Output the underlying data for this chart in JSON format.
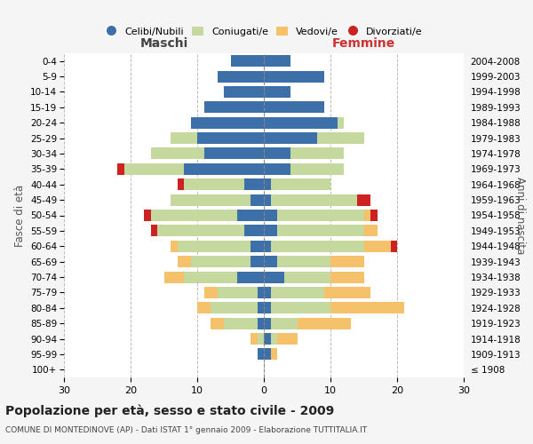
{
  "age_groups": [
    "100+",
    "95-99",
    "90-94",
    "85-89",
    "80-84",
    "75-79",
    "70-74",
    "65-69",
    "60-64",
    "55-59",
    "50-54",
    "45-49",
    "40-44",
    "35-39",
    "30-34",
    "25-29",
    "20-24",
    "15-19",
    "10-14",
    "5-9",
    "0-4"
  ],
  "birth_years": [
    "≤ 1908",
    "1909-1913",
    "1914-1918",
    "1919-1923",
    "1924-1928",
    "1929-1933",
    "1934-1938",
    "1939-1943",
    "1944-1948",
    "1949-1953",
    "1954-1958",
    "1959-1963",
    "1964-1968",
    "1969-1973",
    "1974-1978",
    "1979-1983",
    "1984-1988",
    "1989-1993",
    "1994-1998",
    "1999-2003",
    "2004-2008"
  ],
  "males": {
    "celibi": [
      0,
      1,
      0,
      1,
      1,
      1,
      4,
      2,
      2,
      3,
      4,
      2,
      3,
      12,
      9,
      10,
      11,
      9,
      6,
      7,
      5
    ],
    "coniugati": [
      0,
      0,
      1,
      5,
      7,
      6,
      8,
      9,
      11,
      13,
      13,
      12,
      9,
      9,
      8,
      4,
      0,
      0,
      0,
      0,
      0
    ],
    "vedovi": [
      0,
      0,
      1,
      2,
      2,
      2,
      3,
      2,
      1,
      0,
      0,
      0,
      0,
      0,
      0,
      0,
      0,
      0,
      0,
      0,
      0
    ],
    "divorziati": [
      0,
      0,
      0,
      0,
      0,
      0,
      0,
      0,
      0,
      1,
      1,
      0,
      1,
      1,
      0,
      0,
      0,
      0,
      0,
      0,
      0
    ]
  },
  "females": {
    "nubili": [
      0,
      1,
      1,
      1,
      1,
      1,
      3,
      2,
      1,
      2,
      2,
      1,
      1,
      4,
      4,
      8,
      11,
      9,
      4,
      9,
      4
    ],
    "coniugate": [
      0,
      0,
      1,
      4,
      9,
      8,
      7,
      8,
      14,
      13,
      13,
      13,
      9,
      8,
      8,
      7,
      1,
      0,
      0,
      0,
      0
    ],
    "vedove": [
      0,
      1,
      3,
      8,
      11,
      7,
      5,
      5,
      4,
      2,
      1,
      0,
      0,
      0,
      0,
      0,
      0,
      0,
      0,
      0,
      0
    ],
    "divorziate": [
      0,
      0,
      0,
      0,
      0,
      0,
      0,
      0,
      1,
      0,
      1,
      2,
      0,
      0,
      0,
      0,
      0,
      0,
      0,
      0,
      0
    ]
  },
  "color_celibi": "#3d6fa8",
  "color_coniugati": "#c5d89d",
  "color_vedovi": "#f5c26b",
  "color_divorziati": "#cc2222",
  "title": "Popolazione per età, sesso e stato civile - 2009",
  "subtitle": "COMUNE DI MONTEDINOVE (AP) - Dati ISTAT 1° gennaio 2009 - Elaborazione TUTTITALIA.IT",
  "xlabel_left": "Maschi",
  "xlabel_right": "Femmine",
  "ylabel_left": "Fasce di età",
  "ylabel_right": "Anni di nascita",
  "xlim": 30,
  "bg_color": "#f5f5f5",
  "plot_bg": "#ffffff"
}
